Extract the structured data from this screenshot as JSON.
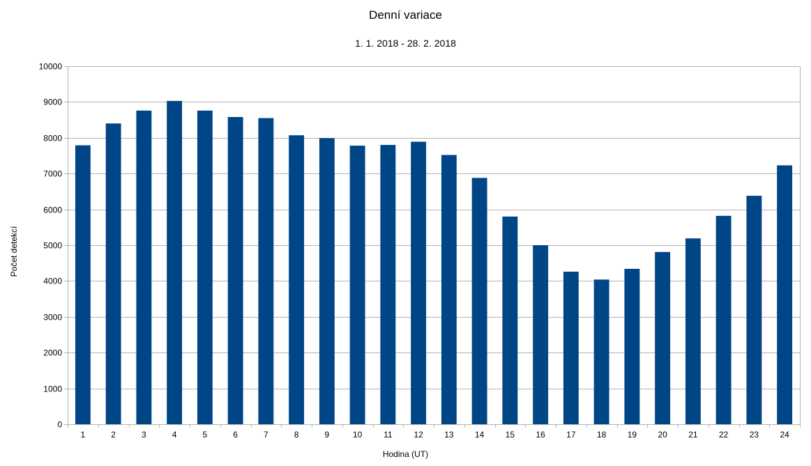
{
  "chart_data": {
    "type": "bar",
    "title": "Denní variace",
    "subtitle": "1. 1. 2018 - 28. 2. 2018",
    "xlabel": "Hodina (UT)",
    "ylabel": "Počet detekcí",
    "categories": [
      "1",
      "2",
      "3",
      "4",
      "5",
      "6",
      "7",
      "8",
      "9",
      "10",
      "11",
      "12",
      "13",
      "14",
      "15",
      "16",
      "17",
      "18",
      "19",
      "20",
      "21",
      "22",
      "23",
      "24"
    ],
    "values": [
      7790,
      8400,
      8760,
      9030,
      8760,
      8580,
      8550,
      8070,
      7990,
      7780,
      7800,
      7890,
      7520,
      6880,
      5800,
      5000,
      4260,
      4040,
      4340,
      4810,
      5190,
      5820,
      6380,
      7230
    ],
    "ylim": [
      0,
      10000
    ],
    "yticks": [
      0,
      1000,
      2000,
      3000,
      4000,
      5000,
      6000,
      7000,
      8000,
      9000,
      10000
    ],
    "grid": true,
    "legend": "none",
    "bar_color": "#004586",
    "grid_color": "#b3b3b3"
  }
}
